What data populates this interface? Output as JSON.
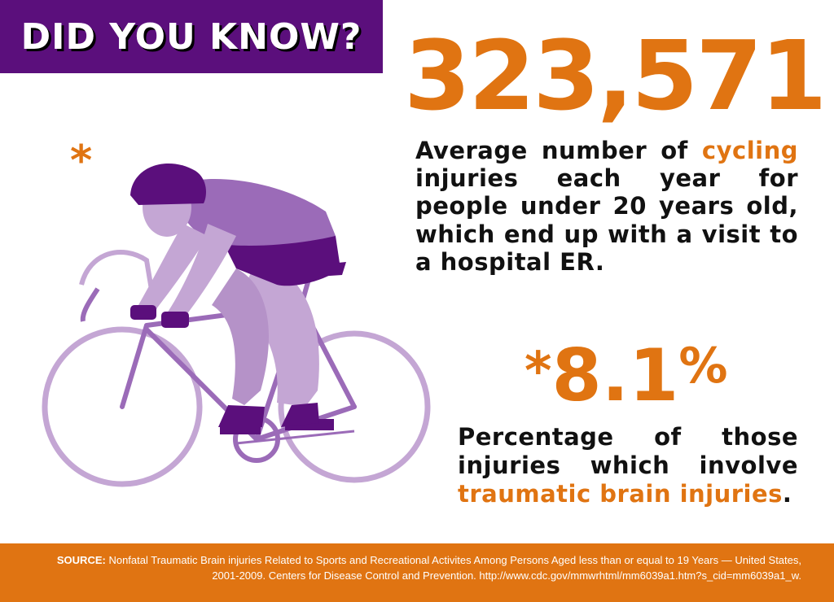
{
  "banner": {
    "title": "DID YOU KNOW?"
  },
  "stat1": {
    "value": "323,571",
    "desc_before": "Average number of ",
    "desc_highlight": "cycling",
    "desc_after": " injuries each year for people under 20 years old, which end up with a visit to a hospital  ER."
  },
  "asterisk": "*",
  "stat2": {
    "value": "8.1",
    "symbol": "%",
    "desc_before": "Percentage of those injuries which involve ",
    "desc_highlight": "traumatic brain injuries",
    "desc_after": "."
  },
  "footer": {
    "source_label": "SOURCE:",
    "source_text": " Nonfatal Traumatic Brain injuries Related to Sports and Recreational Activites Among Persons Aged less than or equal to 19 Years — United States, 2001-2009.  Centers for Disease Control and Prevention. http://www.cdc.gov/mmwrhtml/mm6039a1.htm?s_cid=mm6039a1_w."
  },
  "colors": {
    "purple": "#5b0f7c",
    "orange": "#e07412",
    "light_purple": "#c4a6d4",
    "mid_purple": "#9b6bb8"
  }
}
